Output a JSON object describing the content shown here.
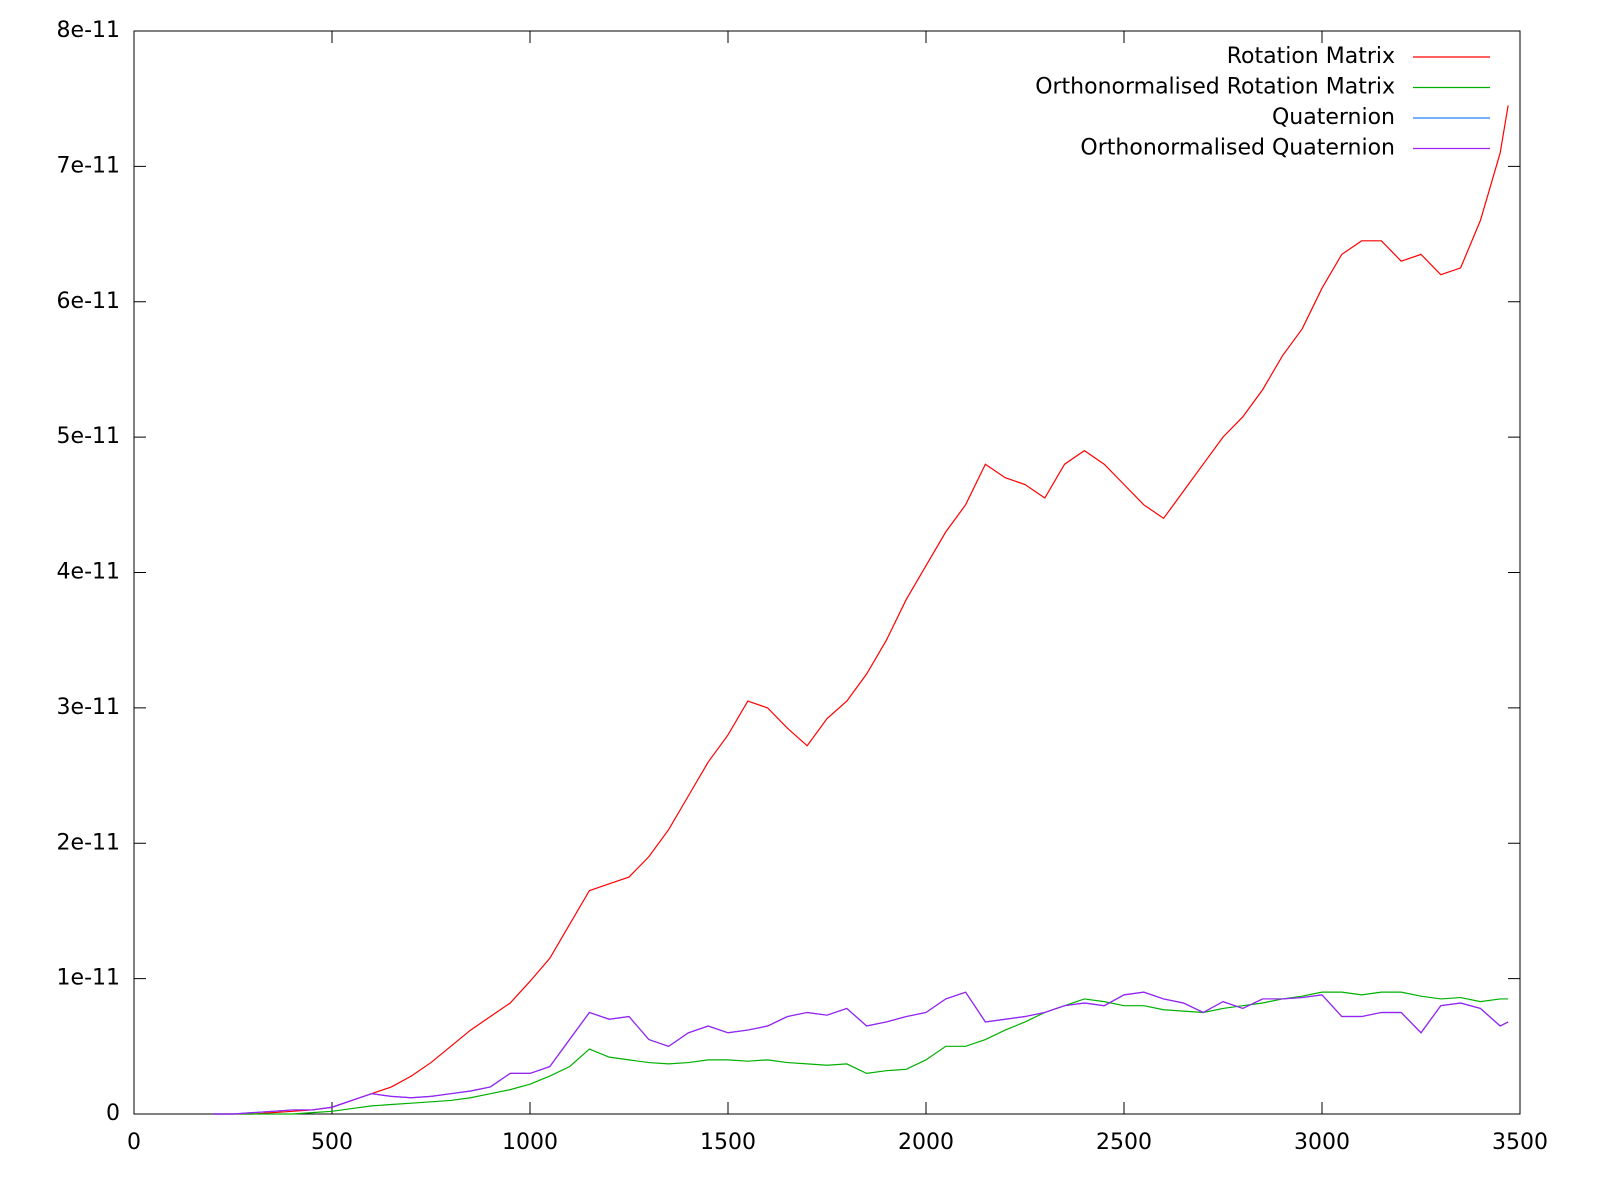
{
  "chart_data": {
    "type": "line",
    "xlim": [
      0,
      3500
    ],
    "xticks": [
      0,
      500,
      1000,
      1500,
      2000,
      2500,
      3000,
      3500
    ],
    "ylim": [
      0,
      8e-11
    ],
    "yticks": [
      0,
      {
        "value": 1e-11,
        "label": "1e-11"
      },
      {
        "value": 2e-11,
        "label": "2e-11"
      },
      {
        "value": 3e-11,
        "label": "3e-11"
      },
      {
        "value": 4e-11,
        "label": "4e-11"
      },
      {
        "value": 5e-11,
        "label": "5e-11"
      },
      {
        "value": 6e-11,
        "label": "6e-11"
      },
      {
        "value": 7e-11,
        "label": "7e-11"
      },
      {
        "value": 8e-11,
        "label": "8e-11"
      }
    ],
    "grid": false,
    "legend": "top-right",
    "x": [
      200,
      250,
      300,
      350,
      400,
      450,
      500,
      550,
      600,
      650,
      700,
      750,
      800,
      850,
      900,
      950,
      1000,
      1050,
      1100,
      1150,
      1200,
      1250,
      1300,
      1350,
      1400,
      1450,
      1500,
      1550,
      1600,
      1650,
      1700,
      1750,
      1800,
      1850,
      1900,
      1950,
      2000,
      2050,
      2100,
      2150,
      2200,
      2250,
      2300,
      2350,
      2400,
      2450,
      2500,
      2550,
      2600,
      2650,
      2700,
      2750,
      2800,
      2850,
      2900,
      2950,
      3000,
      3050,
      3100,
      3150,
      3200,
      3250,
      3300,
      3350,
      3400,
      3450,
      3470
    ],
    "series": [
      {
        "name": "Rotation Matrix",
        "color": "#ff0000",
        "values": [
          0,
          0,
          0,
          1e-13,
          2e-13,
          3e-13,
          5e-13,
          1e-12,
          1.5e-12,
          2e-12,
          2.8e-12,
          3.8e-12,
          5e-12,
          6.2e-12,
          7.2e-12,
          8.2e-12,
          9.8e-12,
          1.15e-11,
          1.4e-11,
          1.65e-11,
          1.7e-11,
          1.75e-11,
          1.9e-11,
          2.1e-11,
          2.35e-11,
          2.6e-11,
          2.8e-11,
          3.05e-11,
          3e-11,
          2.85e-11,
          2.72e-11,
          2.92e-11,
          3.05e-11,
          3.25e-11,
          3.5e-11,
          3.8e-11,
          4.05e-11,
          4.3e-11,
          4.5e-11,
          4.8e-11,
          4.7e-11,
          4.65e-11,
          4.55e-11,
          4.8e-11,
          4.9e-11,
          4.8e-11,
          4.65e-11,
          4.5e-11,
          4.4e-11,
          4.6e-11,
          4.8e-11,
          5e-11,
          5.15e-11,
          5.35e-11,
          5.6e-11,
          5.8e-11,
          6.1e-11,
          6.35e-11,
          6.45e-11,
          6.45e-11,
          6.3e-11,
          6.35e-11,
          6.2e-11,
          6.25e-11,
          6.6e-11,
          7.1e-11,
          7.45e-11
        ]
      },
      {
        "name": "Orthonormalised Rotation Matrix",
        "color": "#00b000",
        "values": [
          0,
          0,
          0,
          0,
          0,
          1e-13,
          2e-13,
          4e-13,
          6e-13,
          7e-13,
          8e-13,
          9e-13,
          1e-12,
          1.2e-12,
          1.5e-12,
          1.8e-12,
          2.2e-12,
          2.8e-12,
          3.5e-12,
          4.8e-12,
          4.2e-12,
          4e-12,
          3.8e-12,
          3.7e-12,
          3.8e-12,
          4e-12,
          4e-12,
          3.9e-12,
          4e-12,
          3.8e-12,
          3.7e-12,
          3.6e-12,
          3.7e-12,
          3e-12,
          3.2e-12,
          3.3e-12,
          4e-12,
          5e-12,
          5e-12,
          5.5e-12,
          6.2e-12,
          6.8e-12,
          7.5e-12,
          8e-12,
          8.5e-12,
          8.3e-12,
          8e-12,
          8e-12,
          7.7e-12,
          7.6e-12,
          7.5e-12,
          7.8e-12,
          8e-12,
          8.2e-12,
          8.5e-12,
          8.7e-12,
          9e-12,
          9e-12,
          8.8e-12,
          9e-12,
          9e-12,
          8.7e-12,
          8.5e-12,
          8.6e-12,
          8.3e-12,
          8.5e-12,
          8.5e-12
        ]
      },
      {
        "name": "Quaternion",
        "color": "#2080ff",
        "values": [
          0,
          0,
          1e-13,
          2e-13,
          3e-13,
          3e-13,
          5e-13,
          1e-12,
          1.5e-12,
          1.3e-12,
          1.2e-12,
          1.3e-12,
          1.5e-12,
          1.7e-12,
          2e-12,
          3e-12,
          3e-12,
          3.5e-12,
          5.5e-12,
          7.5e-12,
          7e-12,
          7.2e-12,
          5.5e-12,
          5e-12,
          6e-12,
          6.5e-12,
          6e-12,
          6.2e-12,
          6.5e-12,
          7.2e-12,
          7.5e-12,
          7.3e-12,
          7.8e-12,
          6.5e-12,
          6.8e-12,
          7.2e-12,
          7.5e-12,
          8.5e-12,
          9e-12,
          6.8e-12,
          7e-12,
          7.2e-12,
          7.5e-12,
          8e-12,
          8.2e-12,
          8e-12,
          8.8e-12,
          9e-12,
          8.5e-12,
          8.2e-12,
          7.5e-12,
          8.3e-12,
          7.8e-12,
          8.5e-12,
          8.5e-12,
          8.6e-12,
          8.8e-12,
          7.2e-12,
          7.2e-12,
          7.5e-12,
          7.5e-12,
          6e-12,
          8e-12,
          8.2e-12,
          7.8e-12,
          6.5e-12,
          6.8e-12
        ]
      },
      {
        "name": "Orthonormalised Quaternion",
        "color": "#a020f0",
        "values": [
          0,
          0,
          1e-13,
          2e-13,
          3e-13,
          3e-13,
          5e-13,
          1e-12,
          1.5e-12,
          1.3e-12,
          1.2e-12,
          1.3e-12,
          1.5e-12,
          1.7e-12,
          2e-12,
          3e-12,
          3e-12,
          3.5e-12,
          5.5e-12,
          7.5e-12,
          7e-12,
          7.2e-12,
          5.5e-12,
          5e-12,
          6e-12,
          6.5e-12,
          6e-12,
          6.2e-12,
          6.5e-12,
          7.2e-12,
          7.5e-12,
          7.3e-12,
          7.8e-12,
          6.5e-12,
          6.8e-12,
          7.2e-12,
          7.5e-12,
          8.5e-12,
          9e-12,
          6.8e-12,
          7e-12,
          7.2e-12,
          7.5e-12,
          8e-12,
          8.2e-12,
          8e-12,
          8.8e-12,
          9e-12,
          8.5e-12,
          8.2e-12,
          7.5e-12,
          8.3e-12,
          7.8e-12,
          8.5e-12,
          8.5e-12,
          8.6e-12,
          8.8e-12,
          7.2e-12,
          7.2e-12,
          7.5e-12,
          7.5e-12,
          6e-12,
          8e-12,
          8.2e-12,
          7.8e-12,
          6.5e-12,
          6.8e-12
        ]
      }
    ]
  }
}
